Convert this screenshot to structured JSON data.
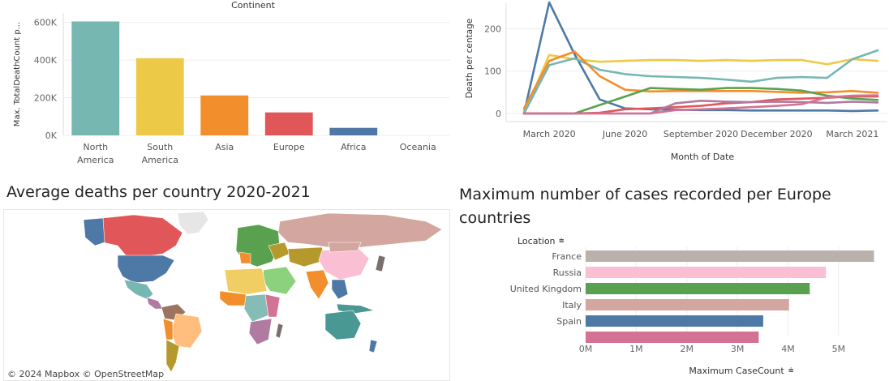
{
  "dashboard": {
    "map_title": "Average deaths per country 2020-2021",
    "europe_title_line1": "Maximum number of cases recorded per Europe",
    "europe_title_line2": "countries",
    "map_attribution": "© 2024 Mapbox  © OpenStreetMap"
  },
  "chart_data": [
    {
      "id": "continent",
      "type": "bar",
      "title": "Continent",
      "ylabel": "Max. TotalDeathCount p...",
      "categories": [
        "North America",
        "South America",
        "Asia",
        "Europe",
        "Africa",
        "Oceania"
      ],
      "category_lines": [
        [
          "North",
          "America"
        ],
        [
          "South",
          "America"
        ],
        [
          "Asia"
        ],
        [
          "Europe"
        ],
        [
          "Africa"
        ],
        [
          "Oceania"
        ]
      ],
      "values": [
        605000,
        410000,
        212000,
        122000,
        40000,
        0
      ],
      "colors": [
        "#76b7b2",
        "#edc948",
        "#f28e2b",
        "#e15759",
        "#4e79a7",
        "#59a14f"
      ],
      "ylim": [
        0,
        650000
      ],
      "yticks": [
        0,
        200000,
        400000,
        600000
      ],
      "ytick_labels": [
        "0K",
        "200K",
        "400K",
        "600K"
      ],
      "grid": true
    },
    {
      "id": "death_pct",
      "type": "line",
      "xlabel": "Month of Date",
      "ylabel": "Death per centage",
      "ylim": [
        0,
        260
      ],
      "yticks": [
        0,
        100,
        200
      ],
      "x": [
        "2020-02",
        "2020-03",
        "2020-04",
        "2020-05",
        "2020-06",
        "2020-07",
        "2020-08",
        "2020-09",
        "2020-10",
        "2020-11",
        "2020-12",
        "2021-01",
        "2021-02",
        "2021-03",
        "2021-04"
      ],
      "x_tick_labels": [
        {
          "at": "2020-03",
          "label": "March 2020"
        },
        {
          "at": "2020-06",
          "label": "June 2020"
        },
        {
          "at": "2020-09",
          "label": "September 2020"
        },
        {
          "at": "2020-12",
          "label": "December 2020"
        },
        {
          "at": "2021-03",
          "label": "March 2021"
        }
      ],
      "series": [
        {
          "color": "#4e79a7",
          "values": [
            0,
            262,
            140,
            33,
            12,
            10,
            9,
            8,
            8,
            7,
            7,
            7,
            7,
            6,
            7
          ]
        },
        {
          "color": "#edc948",
          "values": [
            0,
            138,
            128,
            122,
            124,
            126,
            126,
            124,
            126,
            124,
            126,
            126,
            116,
            128,
            124
          ]
        },
        {
          "color": "#76b7b2",
          "values": [
            0,
            114,
            130,
            103,
            93,
            88,
            86,
            84,
            80,
            75,
            84,
            86,
            84,
            128,
            149
          ]
        },
        {
          "color": "#f28e2b",
          "values": [
            12,
            124,
            146,
            88,
            56,
            52,
            53,
            53,
            53,
            53,
            51,
            49,
            50,
            53,
            49
          ]
        },
        {
          "color": "#59a14f",
          "values": [
            0,
            0,
            0,
            20,
            40,
            60,
            58,
            56,
            60,
            60,
            58,
            54,
            42,
            35,
            32
          ]
        },
        {
          "color": "#e15759",
          "values": [
            0,
            0,
            0,
            2,
            10,
            12,
            15,
            18,
            24,
            27,
            33,
            35,
            37,
            40,
            40
          ]
        },
        {
          "color": "#b07aa1",
          "values": [
            0,
            0,
            0,
            0,
            0,
            0,
            24,
            30,
            28,
            27,
            28,
            27,
            25,
            28,
            26
          ]
        },
        {
          "color": "#d37295",
          "values": [
            0,
            0,
            0,
            0,
            0,
            0,
            8,
            10,
            12,
            15,
            18,
            22,
            38,
            42,
            43
          ]
        }
      ],
      "grid": true
    },
    {
      "id": "europe_cases",
      "type": "bar",
      "orientation": "horizontal",
      "y_header": "Location",
      "xlabel": "Maximum CaseCount",
      "categories": [
        "France",
        "Russia",
        "United Kingdom",
        "Italy",
        "Spain",
        ""
      ],
      "values": [
        5700000,
        4750000,
        4430000,
        4020000,
        3510000,
        3420000
      ],
      "colors": [
        "#bab0ac",
        "#fabfd2",
        "#59a14f",
        "#d4a6a0",
        "#4e79a7",
        "#d37295"
      ],
      "xlim": [
        0,
        5900000
      ],
      "xticks": [
        0,
        1000000,
        2000000,
        3000000,
        4000000,
        5000000
      ],
      "xtick_labels": [
        "0M",
        "1M",
        "2M",
        "3M",
        "4M",
        "5M"
      ],
      "grid": true
    }
  ],
  "map": {
    "type": "choropleth",
    "regions": [
      {
        "name": "north-america",
        "color": "#e15759"
      },
      {
        "name": "united-states",
        "color": "#4e79a7"
      },
      {
        "name": "greenland",
        "color": "#e6e6e6"
      },
      {
        "name": "alaska",
        "color": "#4e79a7"
      },
      {
        "name": "mexico",
        "color": "#76b7b2"
      },
      {
        "name": "central-america",
        "color": "#b07aa1"
      },
      {
        "name": "south-america-north",
        "color": "#9c755f"
      },
      {
        "name": "brazil",
        "color": "#ffbe7d"
      },
      {
        "name": "south-america-south",
        "color": "#f28e2b"
      },
      {
        "name": "argentina",
        "color": "#b6992d"
      },
      {
        "name": "russia",
        "color": "#d4a6a0"
      },
      {
        "name": "europe",
        "color": "#59a14f"
      },
      {
        "name": "north-africa",
        "color": "#f1ce63"
      },
      {
        "name": "west-africa",
        "color": "#f28e2b"
      },
      {
        "name": "central-africa",
        "color": "#86bcb6"
      },
      {
        "name": "east-africa",
        "color": "#d37295"
      },
      {
        "name": "southern-africa",
        "color": "#b07aa1"
      },
      {
        "name": "middle-east",
        "color": "#8cd17d"
      },
      {
        "name": "central-asia",
        "color": "#b6992d"
      },
      {
        "name": "china",
        "color": "#fabfd2"
      },
      {
        "name": "india",
        "color": "#f28e2b"
      },
      {
        "name": "southeast-asia",
        "color": "#4e79a7"
      },
      {
        "name": "japan",
        "color": "#79706e"
      },
      {
        "name": "indonesia",
        "color": "#499894"
      },
      {
        "name": "australia",
        "color": "#499894"
      },
      {
        "name": "madagascar",
        "color": "#79706e"
      },
      {
        "name": "new-zealand",
        "color": "#4e79a7"
      }
    ]
  }
}
